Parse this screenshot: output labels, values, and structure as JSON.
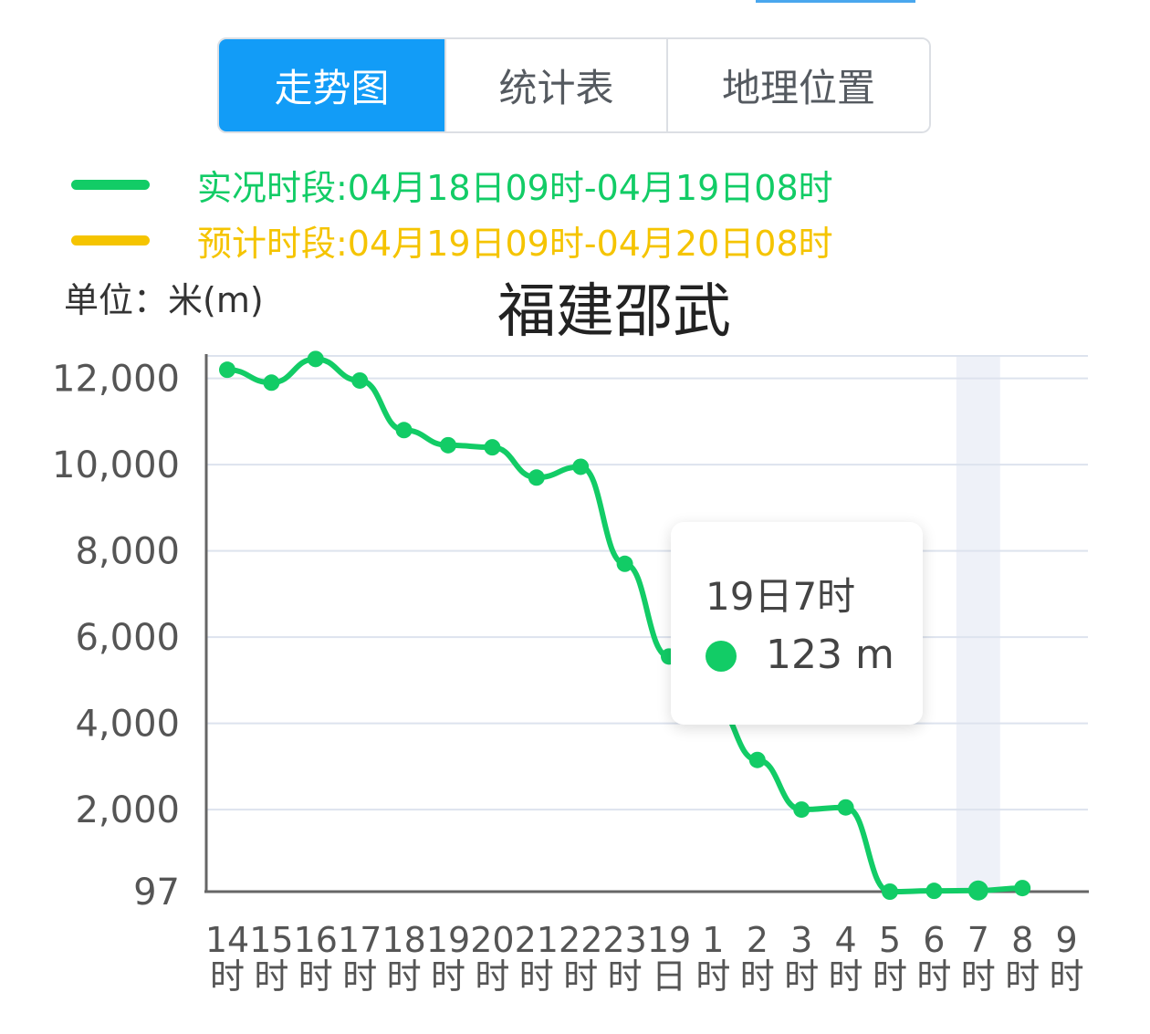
{
  "tabs": [
    {
      "label": "走势图",
      "active": true
    },
    {
      "label": "统计表",
      "active": false
    },
    {
      "label": "地理位置",
      "active": false
    }
  ],
  "legend": {
    "observed": {
      "text": "实况时段:04月18日09时-04月19日08时",
      "color": "#12cc66"
    },
    "forecast": {
      "text": "预计时段:04月19日09时-04月20日08时",
      "color": "#f5c400"
    }
  },
  "unit_label": "单位：米(m)",
  "title": "福建邵武",
  "tooltip": {
    "title": "19日7时",
    "value": "123 m"
  },
  "colors": {
    "line": "#12cc66",
    "tab_active": "#129cf7",
    "grid": "#dde3ee"
  },
  "chart_data": {
    "type": "line",
    "title": "福建邵武",
    "ylabel": "单位：米(m)",
    "y_ticks": [
      "97",
      "2,000",
      "4,000",
      "6,000",
      "8,000",
      "10,000",
      "12,000"
    ],
    "y_tick_values": [
      97,
      2000,
      4000,
      6000,
      8000,
      10000,
      12000
    ],
    "x_ticks": [
      [
        "14",
        "时"
      ],
      [
        "15",
        "时"
      ],
      [
        "16",
        "时"
      ],
      [
        "17",
        "时"
      ],
      [
        "18",
        "时"
      ],
      [
        "19",
        "时"
      ],
      [
        "20",
        "时"
      ],
      [
        "21",
        "时"
      ],
      [
        "22",
        "时"
      ],
      [
        "23",
        "时"
      ],
      [
        "19",
        "日"
      ],
      [
        "1",
        "时"
      ],
      [
        "2",
        "时"
      ],
      [
        "3",
        "时"
      ],
      [
        "4",
        "时"
      ],
      [
        "5",
        "时"
      ],
      [
        "6",
        "时"
      ],
      [
        "7",
        "时"
      ],
      [
        "8",
        "时"
      ],
      [
        "9",
        "时"
      ]
    ],
    "series": [
      {
        "name": "实况时段",
        "values": [
          12200,
          11900,
          12450,
          11950,
          10800,
          10450,
          10400,
          9700,
          9950,
          7700,
          5550,
          4450,
          3150,
          2000,
          2050,
          97,
          115,
          123,
          180,
          null
        ]
      }
    ],
    "highlight_index": 17,
    "grid": true
  }
}
